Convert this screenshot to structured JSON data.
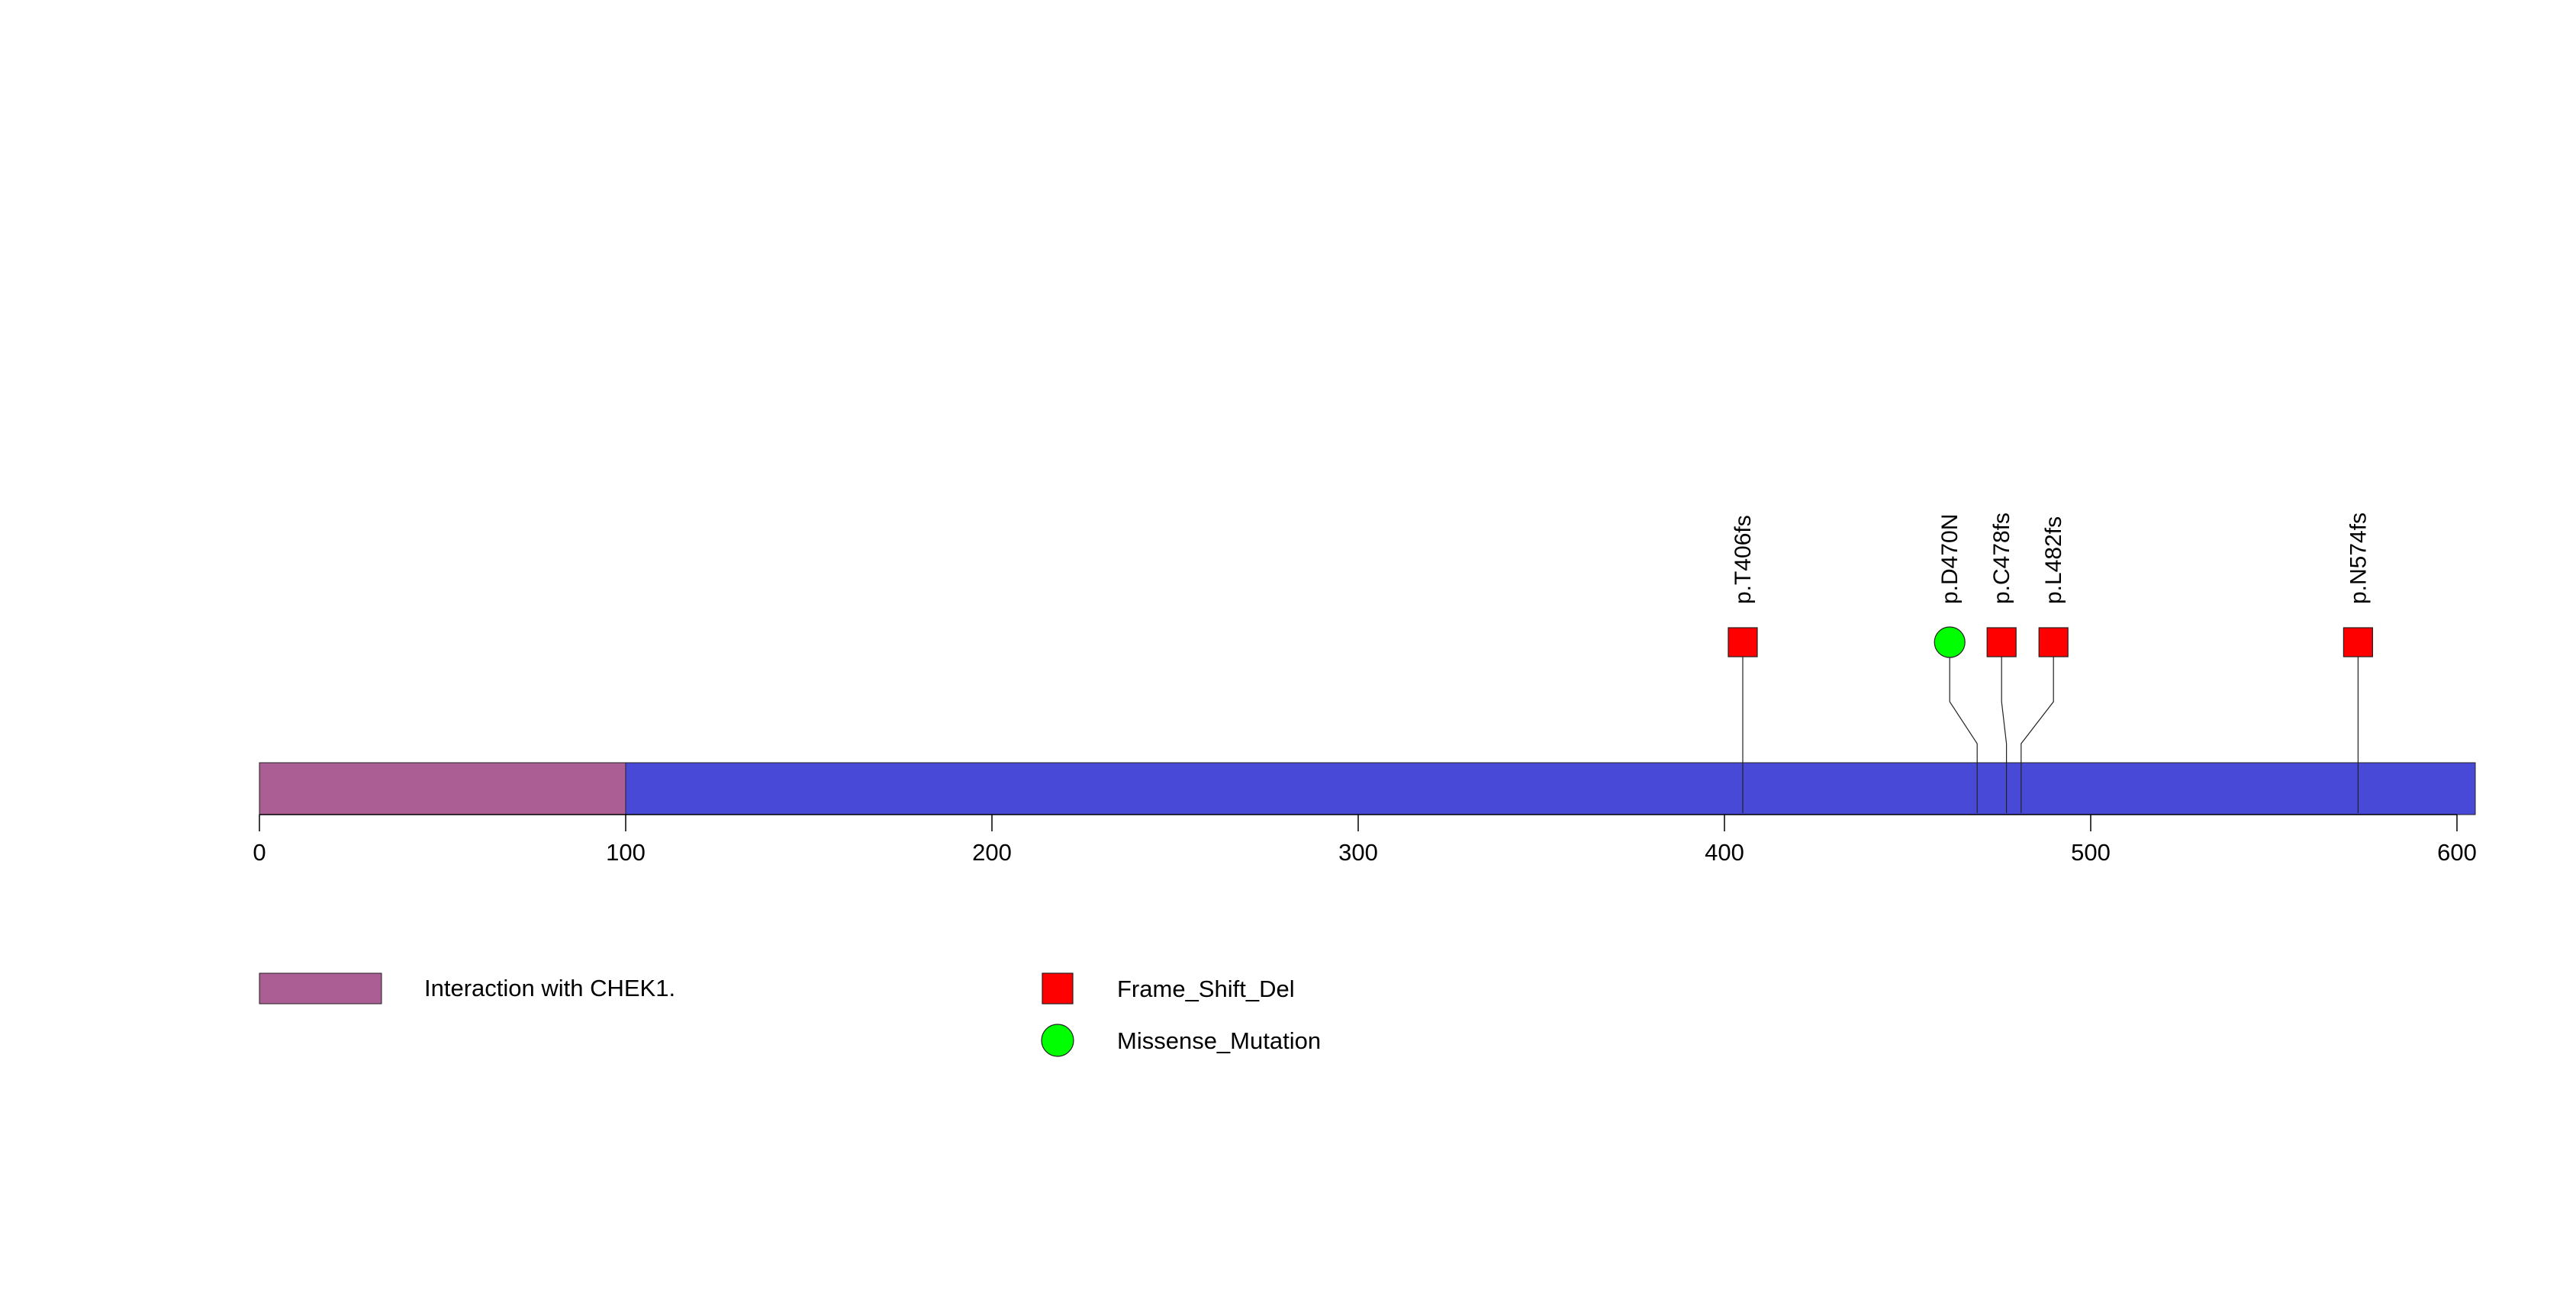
{
  "chart_data": {
    "type": "lollipop",
    "protein_length": 605,
    "x_axis": {
      "range": [
        0,
        605
      ],
      "ticks": [
        0,
        100,
        200,
        300,
        400,
        500,
        600
      ],
      "tick_labels": [
        "0",
        "100",
        "200",
        "300",
        "400",
        "500",
        "600"
      ]
    },
    "backbone_color": "#4949d7",
    "domains": [
      {
        "name": "Interaction with CHEK1.",
        "start": 0,
        "end": 100,
        "color": "#ab5e93"
      }
    ],
    "mutations": [
      {
        "label": "p.T406fs",
        "position": 405,
        "type": "Frame_Shift_Del"
      },
      {
        "label": "p.D470N",
        "position": 469,
        "type": "Missense_Mutation"
      },
      {
        "label": "p.C478fs",
        "position": 477,
        "type": "Frame_Shift_Del"
      },
      {
        "label": "p.L482fs",
        "position": 481,
        "type": "Frame_Shift_Del"
      },
      {
        "label": "p.N574fs",
        "position": 573,
        "type": "Frame_Shift_Del"
      }
    ],
    "mutation_types": [
      {
        "name": "Frame_Shift_Del",
        "shape": "square",
        "color": "#ff0000"
      },
      {
        "name": "Missense_Mutation",
        "shape": "circle",
        "color": "#00ff00"
      }
    ],
    "legend_placement": "bottom-left",
    "grid": false
  }
}
